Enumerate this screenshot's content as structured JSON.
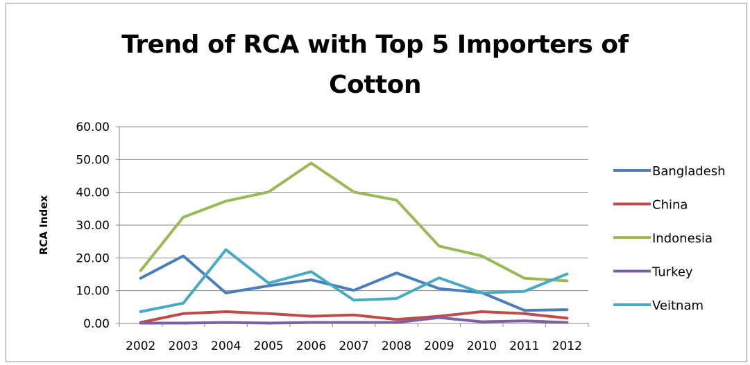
{
  "chart_data": {
    "type": "line",
    "title_line1": "Trend of RCA with Top 5 Importers of",
    "title_line2": "Cotton",
    "ylabel": "RCA Index",
    "xlabel": "",
    "categories": [
      "2002",
      "2003",
      "2004",
      "2005",
      "2006",
      "2007",
      "2008",
      "2009",
      "2010",
      "2011",
      "2012"
    ],
    "yticks": [
      "0.00",
      "10.00",
      "20.00",
      "30.00",
      "40.00",
      "50.00",
      "60.00"
    ],
    "ylim": [
      0,
      60
    ],
    "grid": "horizontal",
    "legend_position": "right",
    "series": [
      {
        "name": "Bangladesh",
        "color": "#4a7ebb",
        "values": [
          13.8,
          20.6,
          9.3,
          11.5,
          13.3,
          10.1,
          15.4,
          10.6,
          9.4,
          4.0,
          4.2
        ]
      },
      {
        "name": "China",
        "color": "#be4b48",
        "values": [
          0.3,
          3.0,
          3.6,
          3.0,
          2.2,
          2.6,
          1.2,
          2.2,
          3.6,
          3.0,
          1.6
        ]
      },
      {
        "name": "Indonesia",
        "color": "#98b954",
        "values": [
          16.1,
          32.4,
          37.3,
          40.1,
          48.9,
          40.1,
          37.6,
          23.6,
          20.6,
          13.8,
          13.0
        ]
      },
      {
        "name": "Turkey",
        "color": "#7d60a0",
        "values": [
          0.1,
          0.1,
          0.3,
          0.1,
          0.3,
          0.3,
          0.3,
          1.8,
          0.5,
          0.8,
          0.3
        ]
      },
      {
        "name": "Veitnam",
        "color": "#46aac5",
        "values": [
          3.6,
          6.2,
          22.5,
          12.3,
          15.8,
          7.1,
          7.6,
          13.9,
          9.3,
          9.8,
          15.1
        ]
      }
    ]
  }
}
